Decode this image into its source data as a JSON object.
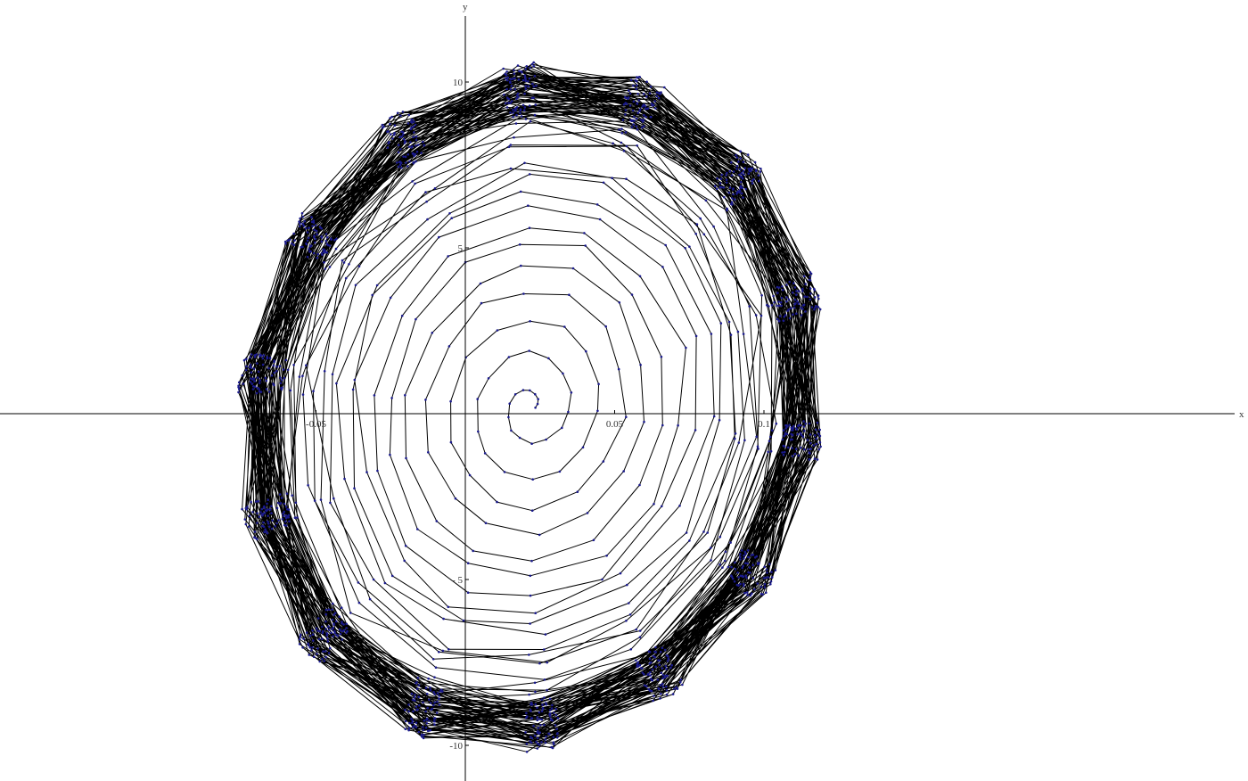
{
  "chart_data": {
    "type": "line",
    "title": "",
    "xlabel": "x",
    "ylabel": "y",
    "xlim": [
      -0.074,
      0.13
    ],
    "ylim": [
      -11,
      12
    ],
    "x_ticks": [
      {
        "value": -0.05,
        "label": "-0.05"
      },
      {
        "value": 0.05,
        "label": "0.05"
      },
      {
        "value": 0.1,
        "label": "0.1"
      }
    ],
    "y_ticks": [
      {
        "value": 10,
        "label": "10"
      },
      {
        "value": 5,
        "label": "5"
      },
      {
        "value": -5,
        "label": "- 5"
      },
      {
        "value": -10,
        "label": "-10"
      }
    ],
    "series": [
      {
        "description_of_shape": "discrete trajectory spiralling outward from a fixed point to a tilted limit cycle",
        "center": [
          0.022,
          0.2
        ],
        "start_radius": [
          0.0015,
          0.15
        ],
        "limit_cycle_radius": [
          0.094,
          10.0
        ],
        "tilt": 0.28,
        "points_per_turn": 14,
        "turns": 95,
        "line_color": "#000000",
        "marker_color": "#1a1a8c"
      }
    ]
  }
}
